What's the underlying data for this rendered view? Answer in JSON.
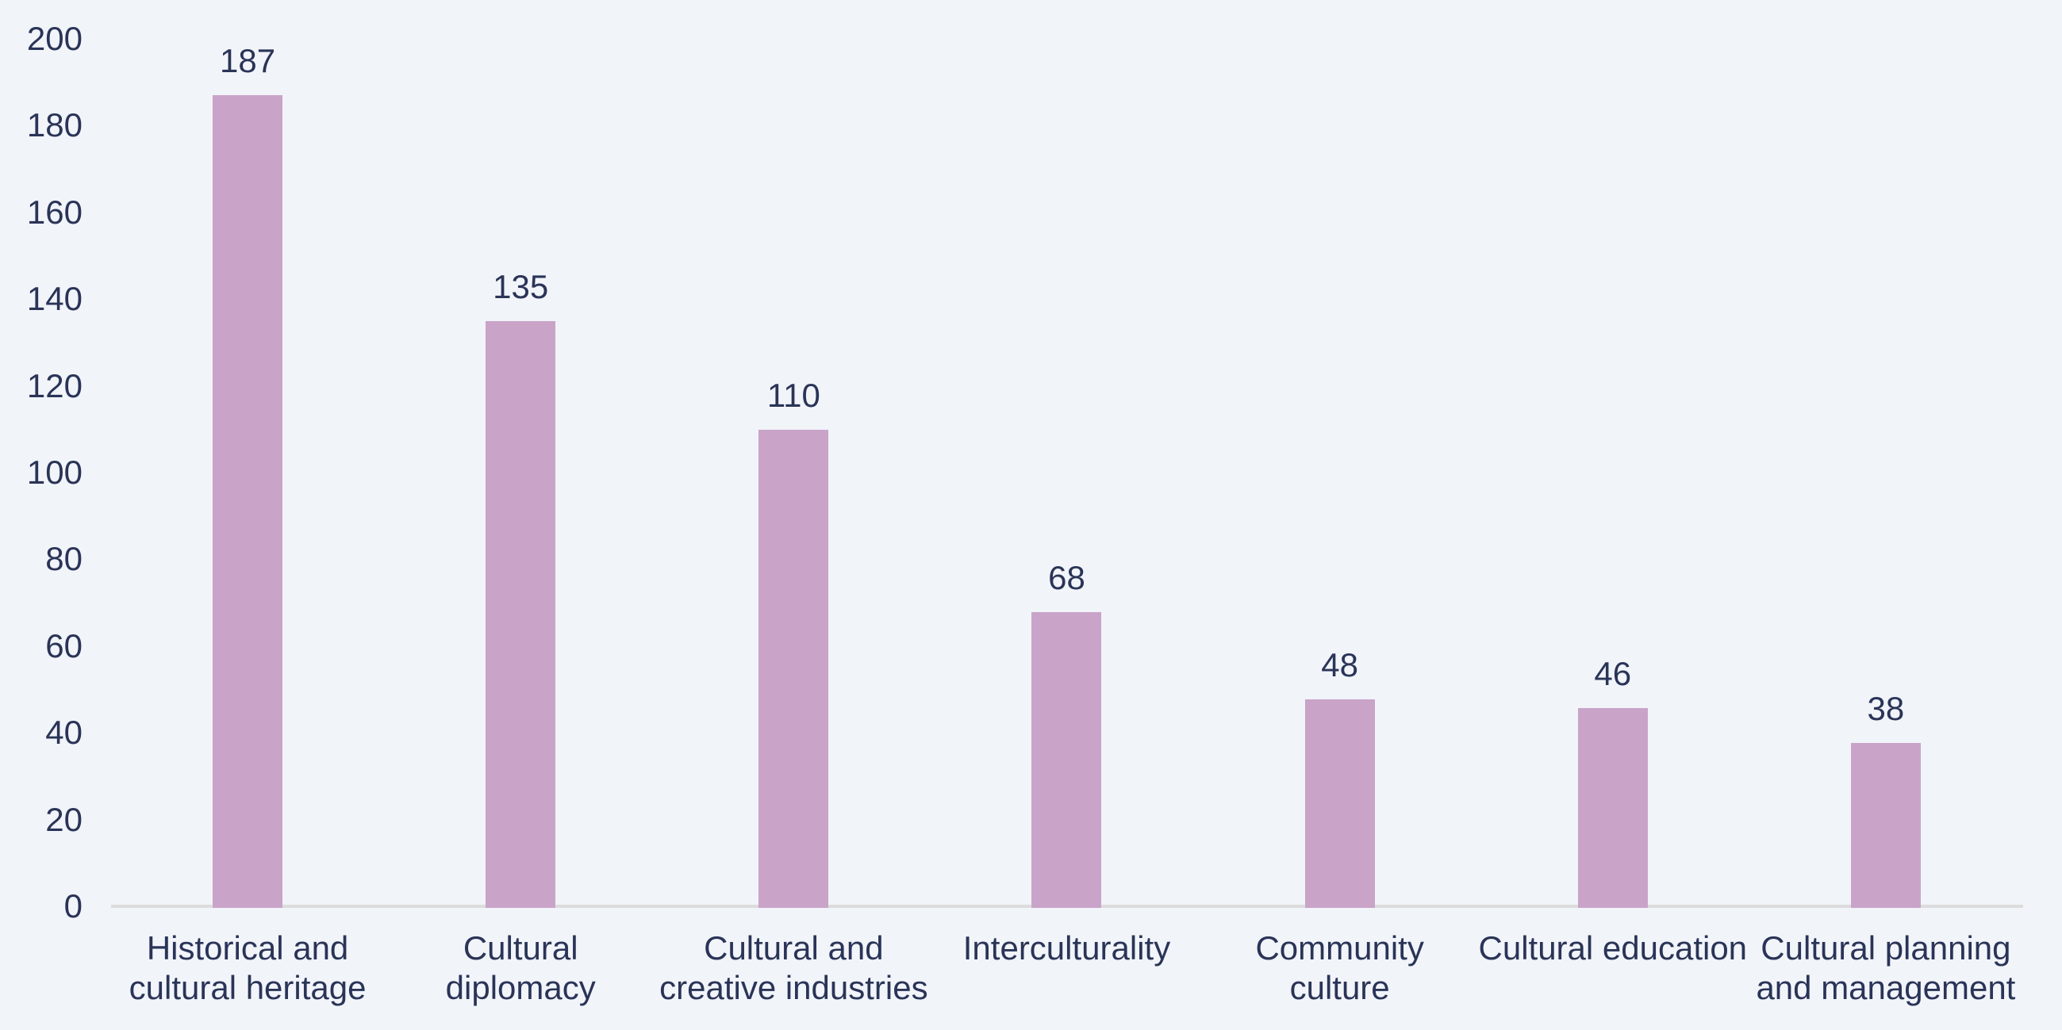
{
  "chart_data": {
    "type": "bar",
    "title": "",
    "xlabel": "",
    "ylabel": "",
    "categories": [
      "Historical and\ncultural heritage",
      "Cultural diplomacy",
      "Cultural and\ncreative industries",
      "Interculturality",
      "Community\nculture",
      "Cultural education",
      "Cultural planning\nand management"
    ],
    "values": [
      187,
      135,
      110,
      68,
      48,
      46,
      38
    ],
    "value_labels": [
      "187",
      "135",
      "110",
      "68",
      "48",
      "46",
      "38"
    ],
    "ylim": [
      0,
      200
    ],
    "yticks": [
      0,
      20,
      40,
      60,
      80,
      100,
      120,
      140,
      160,
      180,
      200
    ],
    "grid": false,
    "legend": false,
    "colors": {
      "bar": "#c9a4c8",
      "background": "#f1f4f9",
      "text": "#2a3457",
      "axis_line": "#dcdcdc"
    }
  }
}
